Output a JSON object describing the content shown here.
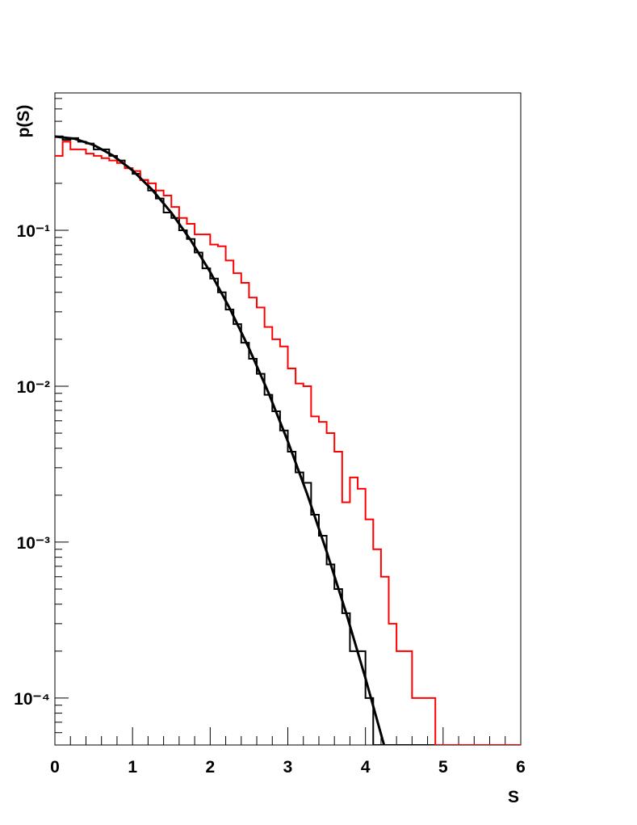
{
  "chart_data": {
    "type": "histogram",
    "y_label": "p(S)",
    "x_label": "S",
    "xlim": [
      0,
      6
    ],
    "xticks": [
      0,
      1,
      2,
      3,
      4,
      5,
      6
    ],
    "ylim": [
      5e-05,
      0.76
    ],
    "log_y": true,
    "yticks": [
      {
        "value": 0.1,
        "label": "10⁻¹"
      },
      {
        "value": 0.01,
        "label": "10⁻²"
      },
      {
        "value": 0.001,
        "label": "10⁻³"
      },
      {
        "value": 0.0001,
        "label": "10⁻⁴"
      }
    ],
    "bins": [
      0,
      0.1,
      0.2,
      0.3,
      0.4,
      0.5,
      0.6,
      0.7,
      0.8,
      0.9,
      1,
      1.1,
      1.2,
      1.3,
      1.4,
      1.5,
      1.6,
      1.7,
      1.8,
      1.9,
      2,
      2.1,
      2.2,
      2.3,
      2.4,
      2.5,
      2.6,
      2.7,
      2.8,
      2.9,
      3,
      3.1,
      3.2,
      3.3,
      3.4,
      3.5,
      3.6,
      3.7,
      3.8,
      3.9,
      4,
      4.1,
      4.2,
      4.3,
      4.4,
      4.5,
      4.6,
      4.7,
      4.8,
      4.9,
      5,
      5.1,
      5.2,
      5.3,
      5.4,
      5.5,
      5.6,
      5.7,
      5.8,
      5.9,
      6
    ],
    "series": [
      {
        "color": "#000000",
        "values": [
          0.4,
          0.38,
          0.39,
          0.37,
          0.36,
          0.33,
          0.33,
          0.3,
          0.28,
          0.25,
          0.23,
          0.21,
          0.18,
          0.16,
          0.13,
          0.12,
          0.1,
          0.088,
          0.072,
          0.057,
          0.049,
          0.04,
          0.031,
          0.025,
          0.019,
          0.015,
          0.012,
          0.0088,
          0.0069,
          0.0052,
          0.0038,
          0.0028,
          0.0024,
          0.0015,
          0.0011,
          0.00072,
          0.0005,
          0.00035,
          0.0002,
          0.0002,
          0.0001,
          0,
          0,
          0,
          0,
          0,
          0,
          0,
          0,
          0,
          0,
          0,
          0,
          0,
          0,
          0,
          0,
          0,
          0,
          0
        ]
      },
      {
        "color": "#ff0000",
        "values": [
          0.3,
          0.37,
          0.33,
          0.33,
          0.31,
          0.3,
          0.29,
          0.28,
          0.27,
          0.25,
          0.24,
          0.21,
          0.2,
          0.18,
          0.167,
          0.141,
          0.12,
          0.11,
          0.094,
          0.094,
          0.081,
          0.079,
          0.064,
          0.053,
          0.046,
          0.037,
          0.032,
          0.024,
          0.02,
          0.018,
          0.013,
          0.0104,
          0.01,
          0.0064,
          0.0059,
          0.005,
          0.0038,
          0.0018,
          0.0026,
          0.0022,
          0.0014,
          0.0009,
          0.0006,
          0.0003,
          0.0002,
          0.0002,
          0.0001,
          0.0001,
          0.0001,
          0,
          0,
          0,
          0,
          0,
          0,
          0,
          0,
          0,
          0,
          0
        ]
      }
    ],
    "curve": {
      "type": "line",
      "color": "#000000",
      "x": [
        0,
        0.25,
        0.5,
        0.75,
        1,
        1.25,
        1.5,
        1.75,
        2,
        2.25,
        2.5,
        2.75,
        3,
        3.25,
        3.5,
        3.75,
        4,
        4.25
      ],
      "values": [
        0.3989,
        0.3867,
        0.3521,
        0.3011,
        0.242,
        0.1826,
        0.1295,
        0.0863,
        0.054,
        0.0317,
        0.0175,
        0.0091,
        0.00443,
        0.00203,
        0.00087,
        0.000353,
        0.000134,
        4.78e-05
      ]
    }
  }
}
